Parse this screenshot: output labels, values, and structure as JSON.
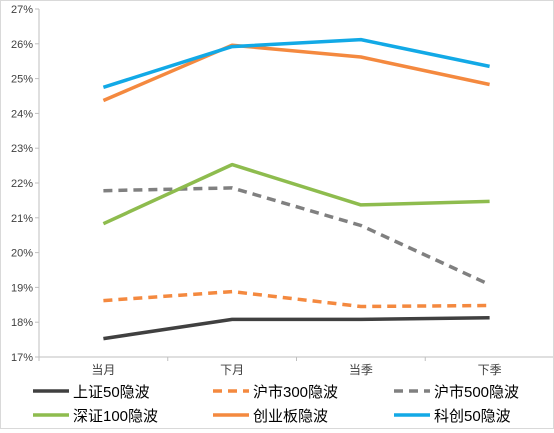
{
  "chart_data": {
    "type": "line",
    "title": "",
    "xlabel": "",
    "ylabel": "",
    "categories": [
      "当月",
      "下月",
      "当季",
      "下季"
    ],
    "ylim": [
      17,
      27
    ],
    "yticks": [
      "17%",
      "18%",
      "19%",
      "20%",
      "21%",
      "22%",
      "23%",
      "24%",
      "25%",
      "26%",
      "27%"
    ],
    "grid": false,
    "legend_position": "bottom",
    "series": [
      {
        "name": "上证50隐波",
        "values": [
          17.53,
          18.08,
          18.08,
          18.13
        ],
        "color": "#404040",
        "dash": "solid"
      },
      {
        "name": "沪市300隐波",
        "values": [
          18.62,
          18.88,
          18.45,
          18.48
        ],
        "color": "#f4893f",
        "dash": "dashed"
      },
      {
        "name": "沪市500隐波",
        "values": [
          21.78,
          21.86,
          20.78,
          19.08
        ],
        "color": "#808080",
        "dash": "dashed"
      },
      {
        "name": "深证100隐波",
        "values": [
          20.83,
          22.53,
          21.37,
          21.47
        ],
        "color": "#8ebc4e",
        "dash": "solid"
      },
      {
        "name": "创业板隐波",
        "values": [
          24.37,
          25.96,
          25.62,
          24.83
        ],
        "color": "#f4893f",
        "dash": "solid"
      },
      {
        "name": "科创50隐波",
        "values": [
          24.75,
          25.92,
          26.12,
          25.35
        ],
        "color": "#12a9e6",
        "dash": "solid"
      }
    ]
  }
}
